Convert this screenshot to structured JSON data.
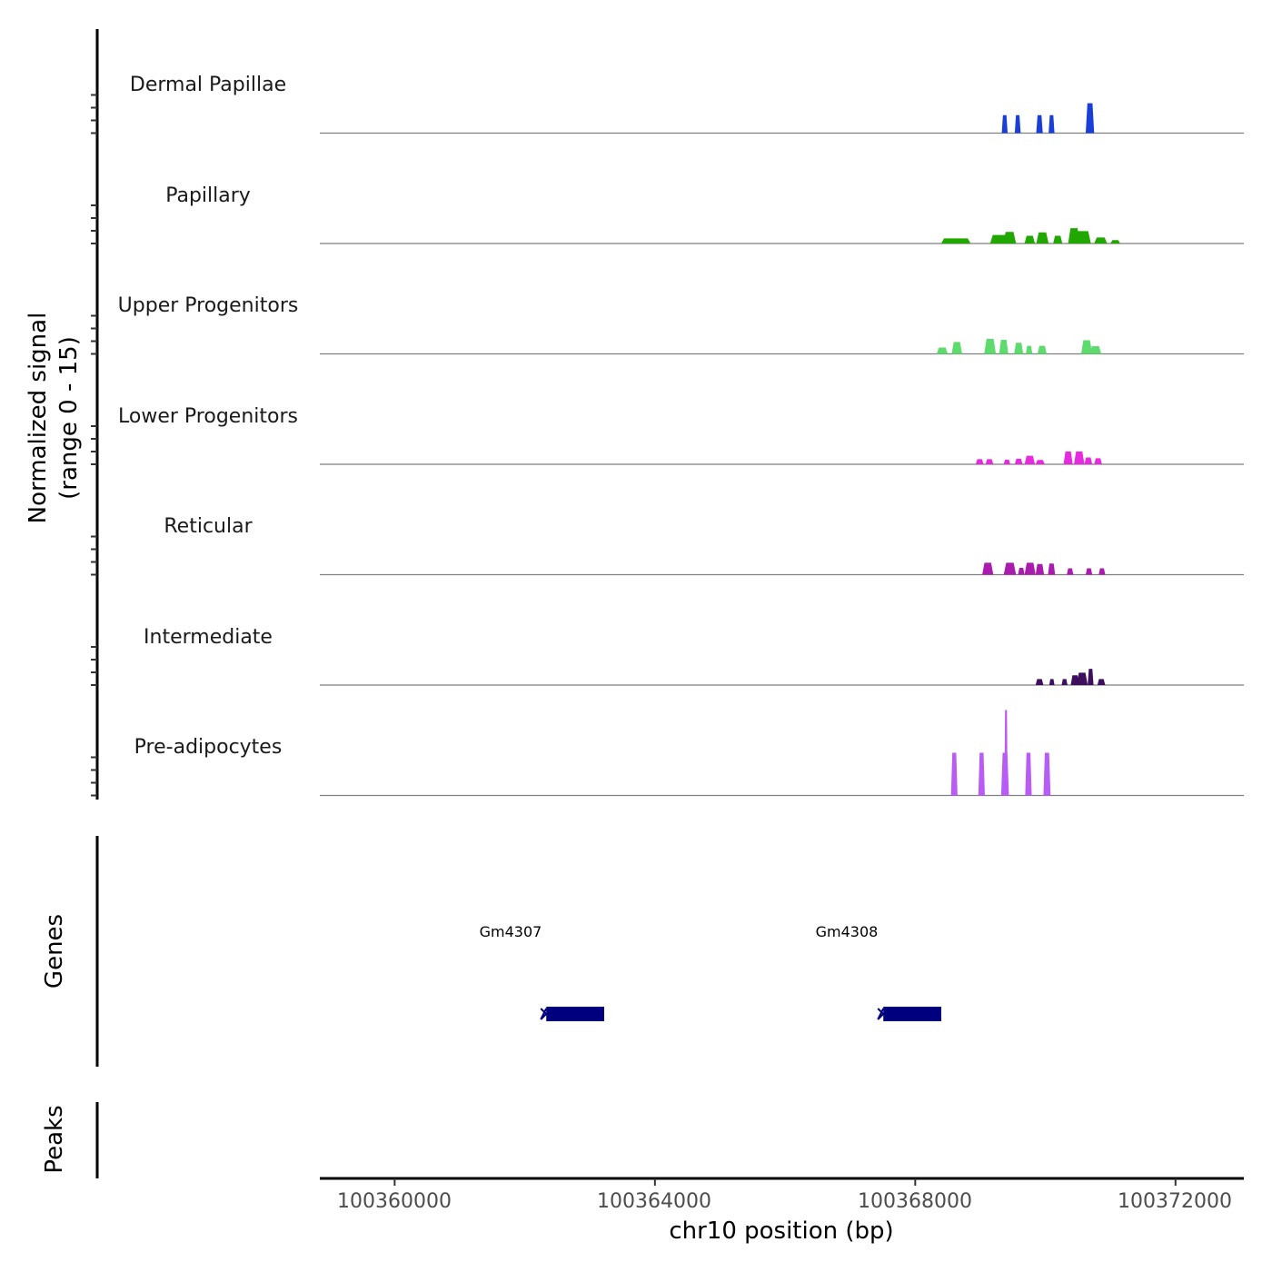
{
  "chart_data": {
    "type": "coverage",
    "y_axis_title_line1": "Normalized signal",
    "y_axis_title_line2": "(range 0 - 15)",
    "x_axis_title": "chr10 position (bp)",
    "x_range": [
      100358850,
      100373050
    ],
    "x_ticks": [
      100360000,
      100364000,
      100368000,
      100372000
    ],
    "x_tick_labels": [
      "100360000",
      "100364000",
      "100368000",
      "100372000"
    ],
    "y_range": [
      0,
      15
    ],
    "tracks": [
      {
        "name": "Dermal Papillae",
        "color": "#1a3fd9",
        "peaks": [
          [
            100369330,
            100369420,
            4.2
          ],
          [
            100369530,
            100369620,
            4.2
          ],
          [
            100369860,
            100369960,
            4.2
          ],
          [
            100370050,
            100370140,
            4.2
          ],
          [
            100370620,
            100370750,
            7.0
          ]
        ]
      },
      {
        "name": "Papillary",
        "color": "#20a800",
        "peaks": [
          [
            100368400,
            100368850,
            1.2
          ],
          [
            100369150,
            100369480,
            2.0
          ],
          [
            100369350,
            100369550,
            2.7
          ],
          [
            100369680,
            100369840,
            1.8
          ],
          [
            100369860,
            100370050,
            2.6
          ],
          [
            100370120,
            100370260,
            1.8
          ],
          [
            100370350,
            100370530,
            3.6
          ],
          [
            100370450,
            100370700,
            2.9
          ],
          [
            100370750,
            100370950,
            1.4
          ],
          [
            100371000,
            100371150,
            0.8
          ]
        ]
      },
      {
        "name": "Upper Progenitors",
        "color": "#5ddc6d",
        "peaks": [
          [
            100368330,
            100368500,
            1.5
          ],
          [
            100368560,
            100368720,
            2.8
          ],
          [
            100369060,
            100369240,
            3.5
          ],
          [
            100369290,
            100369430,
            3.3
          ],
          [
            100369520,
            100369660,
            2.6
          ],
          [
            100369700,
            100369800,
            1.9
          ],
          [
            100369880,
            100370020,
            1.9
          ],
          [
            100370550,
            100370720,
            3.2
          ],
          [
            100370680,
            100370860,
            1.8
          ]
        ]
      },
      {
        "name": "Lower Progenitors",
        "color": "#e62ae0",
        "peaks": [
          [
            100368930,
            100369050,
            1.2
          ],
          [
            100369080,
            100369200,
            1.2
          ],
          [
            100369360,
            100369460,
            1.1
          ],
          [
            100369530,
            100369650,
            1.3
          ],
          [
            100369680,
            100369840,
            2.0
          ],
          [
            100369850,
            100369990,
            1.0
          ],
          [
            100370280,
            100370420,
            3.0
          ],
          [
            100370440,
            100370600,
            3.0
          ],
          [
            100370600,
            100370720,
            1.6
          ],
          [
            100370750,
            100370870,
            1.4
          ]
        ]
      },
      {
        "name": "Reticular",
        "color": "#a91cad",
        "peaks": [
          [
            100369030,
            100369200,
            2.8
          ],
          [
            100369360,
            100369550,
            2.8
          ],
          [
            100369580,
            100369680,
            1.6
          ],
          [
            100369680,
            100369850,
            2.8
          ],
          [
            100369850,
            100369980,
            2.5
          ],
          [
            100370040,
            100370150,
            2.6
          ],
          [
            100370330,
            100370430,
            1.5
          ],
          [
            100370620,
            100370720,
            1.5
          ],
          [
            100370820,
            100370920,
            1.5
          ]
        ]
      },
      {
        "name": "Intermediate",
        "color": "#3d0f5c",
        "peaks": [
          [
            100369850,
            100369970,
            1.4
          ],
          [
            100370060,
            100370140,
            1.4
          ],
          [
            100370250,
            100370340,
            1.4
          ],
          [
            100370390,
            100370520,
            2.3
          ],
          [
            100370480,
            100370650,
            2.9
          ],
          [
            100370650,
            100370740,
            3.8
          ],
          [
            100370800,
            100370920,
            1.4
          ]
        ]
      },
      {
        "name": "Pre-adipocytes",
        "color": "#b95bf5",
        "peaks": [
          [
            100368550,
            100368650,
            10.0
          ],
          [
            100368970,
            100369070,
            10.0
          ],
          [
            100369320,
            100369440,
            10.0
          ],
          [
            100369370,
            100369420,
            20.0
          ],
          [
            100369690,
            100369790,
            10.0
          ],
          [
            100369970,
            100370080,
            10.0
          ]
        ]
      }
    ],
    "genes_title": "Genes",
    "genes": [
      {
        "name": "Gm4307",
        "start": 100362330,
        "end": 100363220,
        "color": "#00007f",
        "strand": "-"
      },
      {
        "name": "Gm4308",
        "start": 100367510,
        "end": 100368400,
        "color": "#00007f",
        "strand": "-"
      }
    ],
    "peaks_title": "Peaks"
  }
}
